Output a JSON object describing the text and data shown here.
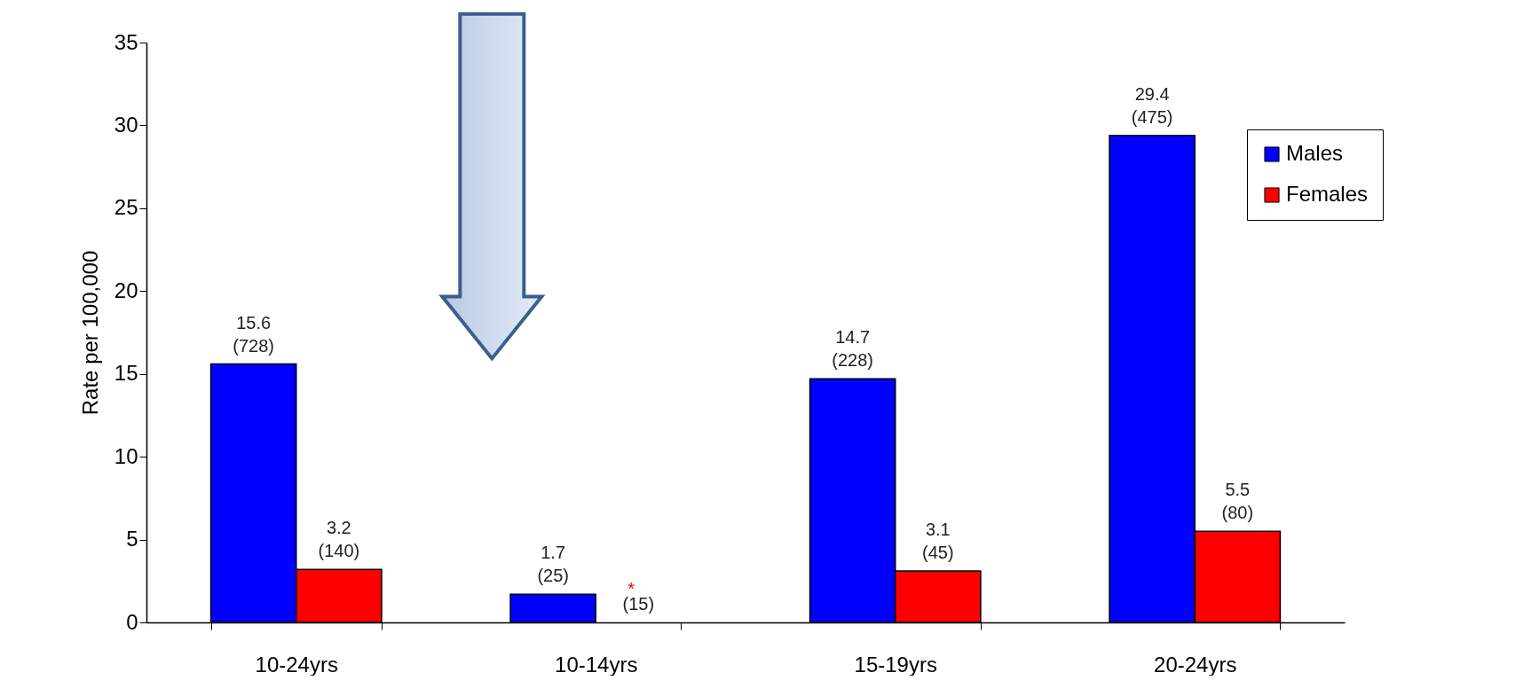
{
  "chart_data": {
    "type": "bar",
    "ylabel": "Rate per 100,000",
    "categories": [
      "10-24yrs",
      "10-14yrs",
      "15-19yrs",
      "20-24yrs"
    ],
    "series": [
      {
        "name": "Males",
        "color": "#0000ff",
        "values": [
          15.6,
          1.7,
          14.7,
          29.4
        ],
        "value_labels": [
          "15.6\n(728)",
          "1.7\n(25)",
          "14.7\n(228)",
          "29.4\n(475)"
        ]
      },
      {
        "name": "Females",
        "color": "#ff0000",
        "values": [
          3.2,
          null,
          3.1,
          5.5
        ],
        "value_labels": [
          "3.2\n(140)",
          "(15)",
          "3.1\n(45)",
          "5.5\n(80)"
        ]
      }
    ],
    "ylim": [
      0,
      35
    ],
    "yticks": [
      0,
      5,
      10,
      15,
      20,
      25,
      30,
      35
    ],
    "grid": false,
    "legend": "top right",
    "annotations": [
      {
        "text": "*",
        "x": "10-14yrs",
        "y": 2
      }
    ]
  }
}
